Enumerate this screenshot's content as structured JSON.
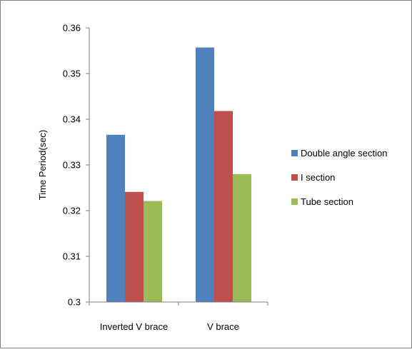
{
  "chart_data": {
    "type": "bar",
    "title": "",
    "xlabel": "",
    "ylabel": "Time Period(sec)",
    "categories": [
      "Inverted V brace",
      "V brace"
    ],
    "series": [
      {
        "name": "Double angle section",
        "color": "#4F81BD",
        "values": [
          0.3366,
          0.3557
        ]
      },
      {
        "name": "I section",
        "color": "#C0504D",
        "values": [
          0.3241,
          0.3418
        ]
      },
      {
        "name": "Tube section",
        "color": "#9BBB59",
        "values": [
          0.3221,
          0.328
        ]
      }
    ],
    "ylim": [
      0.3,
      0.36
    ],
    "yticks": [
      "0.3",
      "0.31",
      "0.32",
      "0.33",
      "0.34",
      "0.35",
      "0.36"
    ],
    "grid": false,
    "legend_position": "right"
  }
}
